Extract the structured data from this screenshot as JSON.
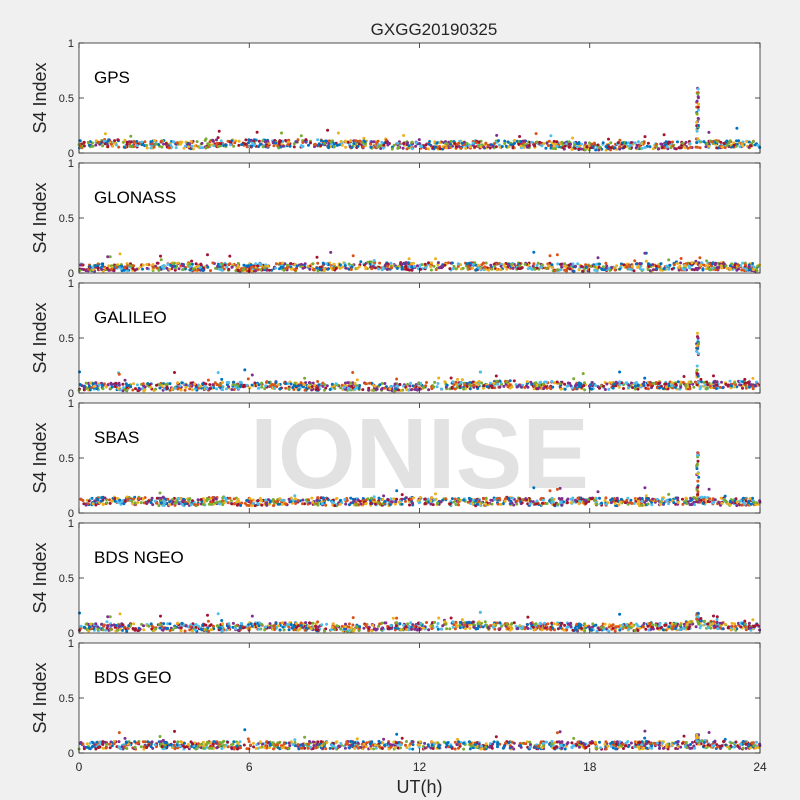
{
  "figure": {
    "title": "GXGG20190325",
    "watermark": "IONISE",
    "xlabel": "UT(h)",
    "xticks": [
      "0",
      "6",
      "12",
      "18",
      "24"
    ]
  },
  "chart_data": [
    {
      "type": "scatter",
      "title": "GPS",
      "ylabel": "S4 Index",
      "xlim": [
        0,
        24
      ],
      "ylim": [
        0,
        1
      ],
      "yticks": [
        "0",
        "0.5",
        "1"
      ],
      "baseline": [
        0.08,
        0.09,
        0.08,
        0.08,
        0.07,
        0.09,
        0.09,
        0.08,
        0.09,
        0.08,
        0.08,
        0.07,
        0.07,
        0.07,
        0.08,
        0.08,
        0.08,
        0.07,
        0.06,
        0.06,
        0.07,
        0.07,
        0.08,
        0.08,
        0.08
      ],
      "spike": {
        "x": 21.8,
        "max": 0.6
      },
      "series_colors": [
        "#0072bd",
        "#d95319",
        "#edb120",
        "#7e2f8e",
        "#77ac30",
        "#4dbeee",
        "#a2142f"
      ]
    },
    {
      "type": "scatter",
      "title": "GLONASS",
      "ylabel": "S4 Index",
      "xlim": [
        0,
        24
      ],
      "ylim": [
        0,
        1
      ],
      "yticks": [
        "0",
        "0.5",
        "1"
      ],
      "baseline": [
        0.05,
        0.05,
        0.05,
        0.06,
        0.05,
        0.06,
        0.05,
        0.06,
        0.05,
        0.06,
        0.07,
        0.06,
        0.06,
        0.06,
        0.06,
        0.06,
        0.06,
        0.05,
        0.05,
        0.06,
        0.05,
        0.06,
        0.06,
        0.06,
        0.05
      ],
      "spike": null,
      "series_colors": [
        "#0072bd",
        "#d95319",
        "#edb120",
        "#7e2f8e",
        "#77ac30",
        "#4dbeee",
        "#a2142f"
      ]
    },
    {
      "type": "scatter",
      "title": "GALILEO",
      "ylabel": "S4 Index",
      "xlim": [
        0,
        24
      ],
      "ylim": [
        0,
        1
      ],
      "yticks": [
        "0",
        "0.5",
        "1"
      ],
      "baseline": [
        0.06,
        0.06,
        0.05,
        0.06,
        0.06,
        0.06,
        0.07,
        0.07,
        0.06,
        0.06,
        0.06,
        0.05,
        0.06,
        0.07,
        0.07,
        0.08,
        0.07,
        0.07,
        0.06,
        0.07,
        0.07,
        0.07,
        0.07,
        0.08,
        0.07
      ],
      "spike": {
        "x": 21.8,
        "max": 0.55
      },
      "series_colors": [
        "#0072bd",
        "#d95319",
        "#edb120",
        "#7e2f8e",
        "#77ac30",
        "#4dbeee",
        "#a2142f"
      ]
    },
    {
      "type": "scatter",
      "title": "SBAS",
      "ylabel": "S4 Index",
      "xlim": [
        0,
        24
      ],
      "ylim": [
        0,
        1
      ],
      "yticks": [
        "0",
        "0.5",
        "1"
      ],
      "baseline": [
        0.1,
        0.11,
        0.11,
        0.1,
        0.1,
        0.11,
        0.1,
        0.1,
        0.11,
        0.1,
        0.1,
        0.1,
        0.11,
        0.1,
        0.1,
        0.11,
        0.1,
        0.1,
        0.11,
        0.1,
        0.1,
        0.11,
        0.11,
        0.1,
        0.1
      ],
      "spike": {
        "x": 21.8,
        "max": 0.55
      },
      "series_colors": [
        "#0072bd",
        "#d95319",
        "#edb120",
        "#7e2f8e",
        "#77ac30",
        "#4dbeee",
        "#a2142f"
      ]
    },
    {
      "type": "scatter",
      "title": "BDS NGEO",
      "ylabel": "S4 Index",
      "xlim": [
        0,
        24
      ],
      "ylim": [
        0,
        1
      ],
      "yticks": [
        "0",
        "0.5",
        "1"
      ],
      "baseline": [
        0.05,
        0.05,
        0.05,
        0.06,
        0.05,
        0.05,
        0.06,
        0.06,
        0.06,
        0.05,
        0.05,
        0.06,
        0.06,
        0.07,
        0.07,
        0.06,
        0.06,
        0.06,
        0.05,
        0.05,
        0.06,
        0.06,
        0.08,
        0.06,
        0.06
      ],
      "spike": {
        "x": 21.8,
        "max": 0.18
      },
      "series_colors": [
        "#0072bd",
        "#d95319",
        "#edb120",
        "#7e2f8e",
        "#77ac30",
        "#4dbeee",
        "#a2142f"
      ]
    },
    {
      "type": "scatter",
      "title": "BDS GEO",
      "ylabel": "S4 Index",
      "xlim": [
        0,
        24
      ],
      "ylim": [
        0,
        1
      ],
      "yticks": [
        "0",
        "0.5",
        "1"
      ],
      "baseline": [
        0.07,
        0.07,
        0.07,
        0.07,
        0.07,
        0.07,
        0.07,
        0.07,
        0.07,
        0.07,
        0.07,
        0.07,
        0.07,
        0.07,
        0.07,
        0.07,
        0.07,
        0.07,
        0.07,
        0.07,
        0.07,
        0.07,
        0.08,
        0.07,
        0.07
      ],
      "spike": {
        "x": 21.8,
        "max": 0.17
      },
      "series_colors": [
        "#0072bd",
        "#d95319",
        "#edb120",
        "#7e2f8e",
        "#77ac30",
        "#4dbeee",
        "#a2142f"
      ]
    }
  ]
}
